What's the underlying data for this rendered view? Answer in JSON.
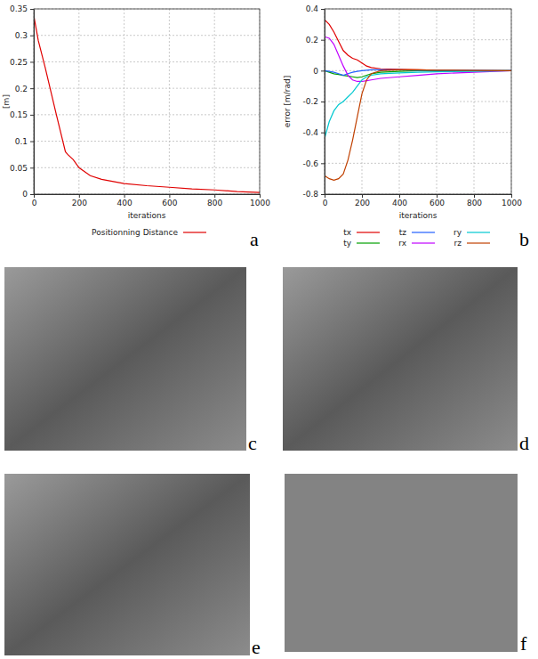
{
  "chart_data": [
    {
      "type": "line",
      "annotations": [
        "a"
      ],
      "x_label": "iterations",
      "y_label": "[m]",
      "xlim": [
        0,
        1000
      ],
      "xticks": [
        0,
        200,
        400,
        600,
        800,
        1000
      ],
      "ylim": [
        0,
        0.35
      ],
      "yticks": [
        0,
        0.05,
        0.1,
        0.15,
        0.2,
        0.25,
        0.3,
        0.35
      ],
      "grid": true,
      "legend": "bottom",
      "x": [
        0,
        1,
        20,
        50,
        100,
        140,
        150,
        175,
        200,
        250,
        300,
        400,
        500,
        600,
        700,
        800,
        900,
        1000
      ],
      "series": [
        {
          "name": "Positionning Distance",
          "color": "#e00000",
          "values": [
            0,
            0.335,
            0.29,
            0.24,
            0.15,
            0.08,
            0.075,
            0.065,
            0.05,
            0.035,
            0.028,
            0.02,
            0.016,
            0.013,
            0.01,
            0.008,
            0.005,
            0.003
          ]
        }
      ]
    },
    {
      "type": "line",
      "annotations": [
        "b"
      ],
      "x_label": "iterations",
      "y_label": "error [m/rad]",
      "xlim": [
        0,
        1000
      ],
      "xticks": [
        0,
        200,
        400,
        600,
        800,
        1000
      ],
      "ylim": [
        -0.8,
        0.4
      ],
      "yticks": [
        -0.8,
        -0.6,
        -0.4,
        -0.2,
        0,
        0.2,
        0.4
      ],
      "grid": true,
      "legend": "bottom",
      "x": [
        0,
        25,
        50,
        75,
        100,
        125,
        150,
        175,
        200,
        225,
        250,
        300,
        400,
        500,
        600,
        800,
        1000
      ],
      "series": [
        {
          "name": "tx",
          "color": "#e00000",
          "values": [
            0.33,
            0.3,
            0.25,
            0.19,
            0.13,
            0.1,
            0.08,
            0.07,
            0.05,
            0.03,
            0.02,
            0.012,
            0.008,
            0.005,
            0.003,
            0.001,
            0
          ]
        },
        {
          "name": "ty",
          "color": "#00a000",
          "values": [
            0,
            -0.01,
            -0.02,
            -0.025,
            -0.03,
            -0.035,
            -0.04,
            -0.045,
            -0.04,
            -0.03,
            -0.02,
            -0.01,
            -0.005,
            0,
            0,
            0,
            0
          ]
        },
        {
          "name": "tz",
          "color": "#2060ff",
          "values": [
            0,
            -0.005,
            -0.01,
            -0.02,
            -0.03,
            -0.02,
            -0.01,
            -0.005,
            0,
            0.003,
            0.005,
            0.005,
            0.005,
            0.003,
            0.002,
            0.001,
            0
          ]
        },
        {
          "name": "rx",
          "color": "#c000ff",
          "values": [
            0.22,
            0.21,
            0.17,
            0.1,
            0.03,
            -0.03,
            -0.06,
            -0.07,
            -0.07,
            -0.065,
            -0.06,
            -0.05,
            -0.04,
            -0.03,
            -0.02,
            -0.01,
            0
          ]
        },
        {
          "name": "ry",
          "color": "#00c8d0",
          "values": [
            -0.44,
            -0.33,
            -0.26,
            -0.22,
            -0.2,
            -0.17,
            -0.14,
            -0.1,
            -0.06,
            -0.04,
            -0.03,
            -0.02,
            -0.015,
            -0.01,
            -0.008,
            -0.004,
            0
          ]
        },
        {
          "name": "rz",
          "color": "#c04000",
          "values": [
            -0.68,
            -0.7,
            -0.71,
            -0.7,
            -0.67,
            -0.58,
            -0.45,
            -0.3,
            -0.15,
            -0.06,
            -0.02,
            0,
            0.005,
            0.005,
            0.003,
            0.001,
            0
          ]
        }
      ]
    }
  ],
  "images": [
    {
      "label": "c"
    },
    {
      "label": "d"
    },
    {
      "label": "e"
    },
    {
      "label": "f"
    }
  ]
}
